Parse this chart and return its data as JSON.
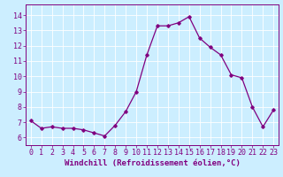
{
  "x": [
    0,
    1,
    2,
    3,
    4,
    5,
    6,
    7,
    8,
    9,
    10,
    11,
    12,
    13,
    14,
    15,
    16,
    17,
    18,
    19,
    20,
    21,
    22,
    23
  ],
  "y": [
    7.1,
    6.6,
    6.7,
    6.6,
    6.6,
    6.5,
    6.3,
    6.1,
    6.8,
    7.7,
    9.0,
    11.4,
    13.3,
    13.3,
    13.5,
    13.9,
    12.5,
    11.9,
    11.4,
    10.1,
    9.9,
    8.0,
    6.7,
    7.8
  ],
  "line_color": "#800080",
  "marker": "D",
  "marker_size": 1.8,
  "line_width": 0.9,
  "xlabel": "Windchill (Refroidissement éolien,°C)",
  "xlabel_fontsize": 6.5,
  "bg_color": "#cceeff",
  "grid_color": "#ffffff",
  "tick_color": "#800080",
  "tick_label_color": "#800080",
  "ylim": [
    5.5,
    14.7
  ],
  "xlim": [
    -0.5,
    23.5
  ],
  "yticks": [
    6,
    7,
    8,
    9,
    10,
    11,
    12,
    13,
    14
  ],
  "xticks": [
    0,
    1,
    2,
    3,
    4,
    5,
    6,
    7,
    8,
    9,
    10,
    11,
    12,
    13,
    14,
    15,
    16,
    17,
    18,
    19,
    20,
    21,
    22,
    23
  ],
  "tick_fontsize": 6.0,
  "spine_color": "#800080"
}
